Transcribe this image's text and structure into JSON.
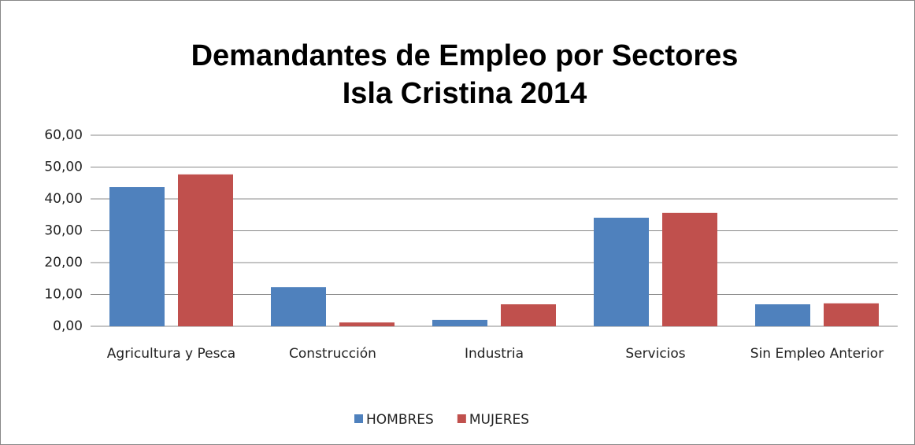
{
  "chart_data": {
    "type": "bar",
    "title": [
      "Demandantes de Empleo por Sectores",
      "Isla Cristina 2014"
    ],
    "categories": [
      "Agricultura y Pesca",
      "Construcción",
      "Industria",
      "Servicios",
      "Sin Empleo Anterior"
    ],
    "series": [
      {
        "name": "HOMBRES",
        "color": "#4f81bd",
        "values": [
          43.7,
          12.3,
          2.0,
          34.1,
          6.9
        ]
      },
      {
        "name": "MUJERES",
        "color": "#c0504d",
        "values": [
          47.7,
          1.2,
          6.9,
          35.6,
          7.2
        ]
      }
    ],
    "ylim": [
      0,
      60
    ],
    "yticks": [
      {
        "value": 0,
        "label": "0,00"
      },
      {
        "value": 10,
        "label": "10,00"
      },
      {
        "value": 20,
        "label": "20,00"
      },
      {
        "value": 30,
        "label": "30,00"
      },
      {
        "value": 40,
        "label": "40,00"
      },
      {
        "value": 50,
        "label": "50,00"
      },
      {
        "value": 60,
        "label": "60,00"
      }
    ],
    "grid": true,
    "legend": "bottom"
  }
}
